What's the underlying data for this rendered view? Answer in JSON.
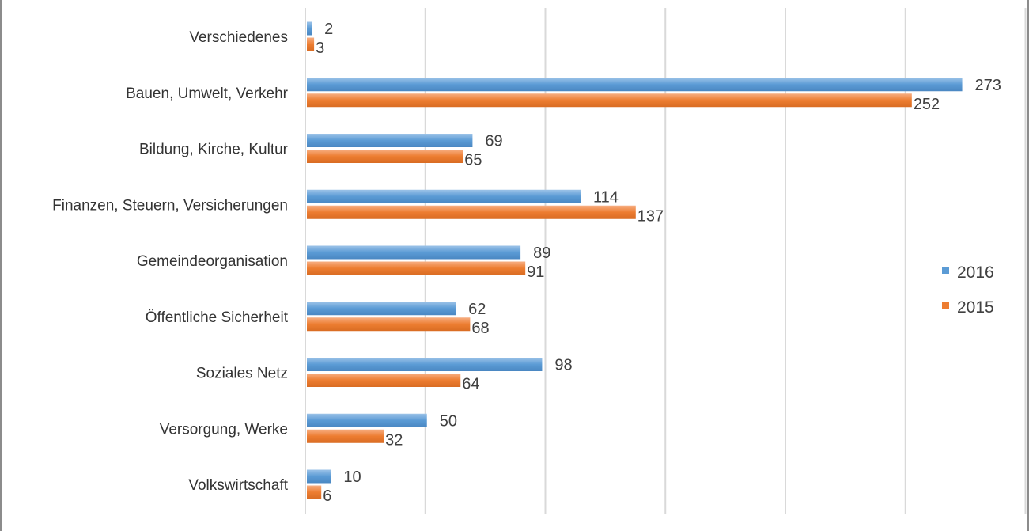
{
  "chart_data": {
    "type": "bar",
    "orientation": "horizontal",
    "categories": [
      "Verschiedenes",
      "Bauen, Umwelt, Verkehr",
      "Bildung, Kirche, Kultur",
      "Finanzen, Steuern, Versicherungen",
      "Gemeindeorganisation",
      "Öffentliche Sicherheit",
      "Soziales Netz",
      "Versorgung, Werke",
      "Volkswirtschaft"
    ],
    "series": [
      {
        "name": "2016",
        "color": "#5b9bd5",
        "values": [
          2,
          273,
          69,
          114,
          89,
          62,
          98,
          50,
          10
        ]
      },
      {
        "name": "2015",
        "color": "#ed7d31",
        "values": [
          3,
          252,
          65,
          137,
          91,
          68,
          64,
          32,
          6
        ]
      }
    ],
    "title": "",
    "xlabel": "",
    "ylabel": "",
    "xlim": [
      0,
      300
    ],
    "grid": true,
    "tick_labels_visible": false,
    "data_labels": true,
    "legend_position": "right"
  }
}
